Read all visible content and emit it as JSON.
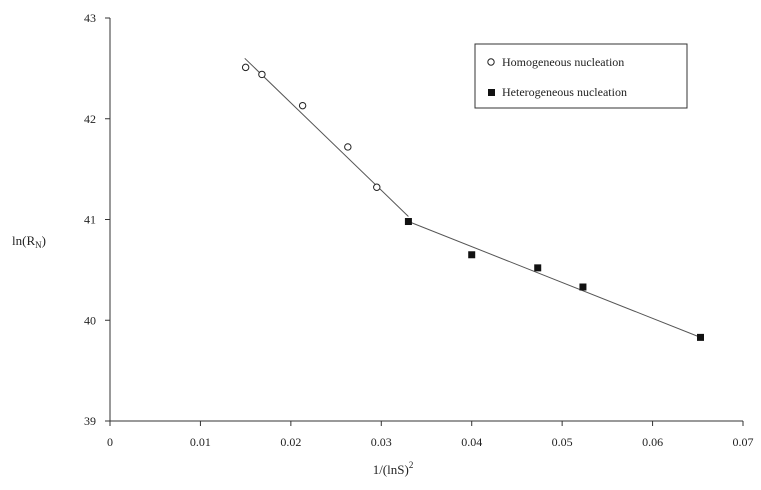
{
  "chart_data": {
    "type": "scatter",
    "xlabel": "1/(lnS)",
    "xlabel_superscript": "2",
    "ylabel": "ln(R",
    "ylabel_subscript": "N",
    "ylabel_close": ")",
    "xlim": [
      0,
      0.07
    ],
    "ylim": [
      39,
      43
    ],
    "xticks": [
      "0",
      "0.01",
      "0.02",
      "0.03",
      "0.04",
      "0.05",
      "0.06",
      "0.07"
    ],
    "yticks": [
      "39",
      "40",
      "41",
      "42",
      "43"
    ],
    "grid": false,
    "legend_position": "top-right",
    "series": [
      {
        "name": "Homogeneous nucleation",
        "marker": "open-circle",
        "points": [
          {
            "x": 0.015,
            "y": 42.51
          },
          {
            "x": 0.0168,
            "y": 42.44
          },
          {
            "x": 0.0213,
            "y": 42.13
          },
          {
            "x": 0.0263,
            "y": 41.72
          },
          {
            "x": 0.0295,
            "y": 41.32
          }
        ],
        "fit_line": {
          "x": [
            0.0149,
            0.033
          ],
          "y": [
            42.6,
            41.03
          ]
        }
      },
      {
        "name": "Heterogeneous nucleation",
        "marker": "filled-square",
        "points": [
          {
            "x": 0.033,
            "y": 40.98
          },
          {
            "x": 0.04,
            "y": 40.65
          },
          {
            "x": 0.0473,
            "y": 40.52
          },
          {
            "x": 0.0523,
            "y": 40.33
          },
          {
            "x": 0.0653,
            "y": 39.83
          }
        ],
        "fit_line": {
          "x": [
            0.033,
            0.0653
          ],
          "y": [
            40.98,
            39.83
          ]
        }
      }
    ]
  }
}
